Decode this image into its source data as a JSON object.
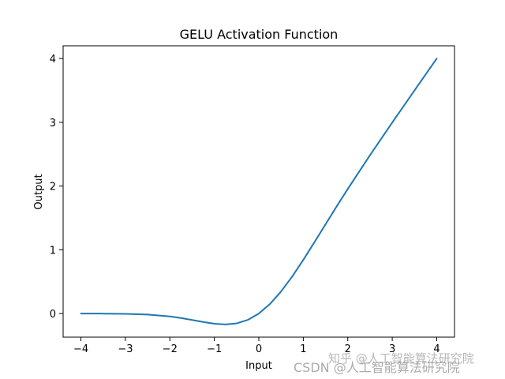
{
  "chart_data": {
    "type": "line",
    "title": "GELU Activation Function",
    "xlabel": "Input",
    "ylabel": "Output",
    "xlim": [
      -4.4,
      4.4
    ],
    "ylim": [
      -0.37,
      4.2
    ],
    "xticks": [
      -4,
      -3,
      -2,
      -1,
      0,
      1,
      2,
      3,
      4
    ],
    "xtick_labels": [
      "−4",
      "−3",
      "−2",
      "−1",
      "0",
      "1",
      "2",
      "3",
      "4"
    ],
    "yticks": [
      0,
      1,
      2,
      3,
      4
    ],
    "ytick_labels": [
      "0",
      "1",
      "2",
      "3",
      "4"
    ],
    "grid": false,
    "series": [
      {
        "color": "#1f77b4",
        "x": [
          -4.0,
          -3.5,
          -3.0,
          -2.5,
          -2.0,
          -1.75,
          -1.5,
          -1.25,
          -1.0,
          -0.75,
          -0.5,
          -0.25,
          0.0,
          0.25,
          0.5,
          0.75,
          1.0,
          1.25,
          1.5,
          1.75,
          2.0,
          2.5,
          3.0,
          3.5,
          4.0
        ],
        "y": [
          0.0,
          -0.0008,
          -0.004,
          -0.0155,
          -0.0454,
          -0.0695,
          -0.1003,
          -0.1318,
          -0.1588,
          -0.17,
          -0.1543,
          -0.1003,
          0.0,
          0.1497,
          0.3457,
          0.58,
          0.8412,
          1.1182,
          1.3997,
          1.6805,
          1.9546,
          2.4845,
          2.996,
          3.4992,
          3.9999
        ]
      }
    ]
  },
  "watermark": {
    "line1": "知乎 @人工智能算法研究院",
    "line2": "CSDN @人工智能算法研究院"
  }
}
